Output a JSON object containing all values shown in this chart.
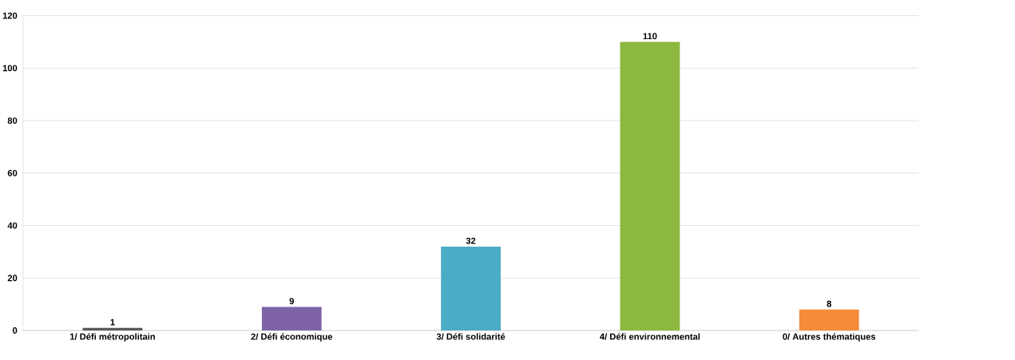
{
  "chart_data": {
    "type": "bar",
    "categories": [
      "1/ Défi métropolitain",
      "2/ Défi économique",
      "3/ Défi solidarité",
      "4/ Défi environnemental",
      "0/ Autres thématiques"
    ],
    "values": [
      1,
      9,
      32,
      110,
      8
    ],
    "colors": [
      "#595959",
      "#7f63a8",
      "#4bacc6",
      "#8cb83f",
      "#f68b3a"
    ],
    "ylim": [
      0,
      120
    ],
    "yticks": [
      0,
      20,
      40,
      60,
      80,
      100,
      120
    ],
    "grid": "y",
    "data_labels": true
  }
}
